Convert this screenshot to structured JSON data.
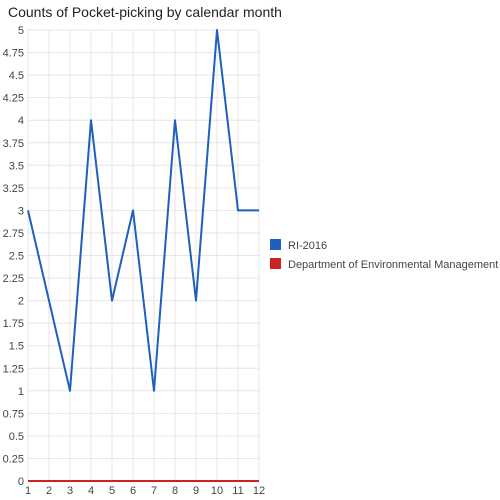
{
  "chart_data": {
    "type": "line",
    "title": "Counts of Pocket-picking by calendar month",
    "xlabel": "",
    "ylabel": "",
    "x": [
      1,
      2,
      3,
      4,
      5,
      6,
      7,
      8,
      9,
      10,
      11,
      12
    ],
    "x_tick_labels": [
      "1",
      "2",
      "3",
      "4",
      "5",
      "6",
      "7",
      "8",
      "9",
      "10",
      "11",
      "12"
    ],
    "ylim": [
      0,
      5
    ],
    "y_tick_labels": [
      "0",
      "0.25",
      "0.5",
      "0.75",
      "1",
      "1.25",
      "1.5",
      "1.75",
      "2",
      "2.25",
      "2.5",
      "2.75",
      "3",
      "3.25",
      "3.5",
      "3.75",
      "4",
      "4.25",
      "4.5",
      "4.75",
      "5"
    ],
    "grid": true,
    "legend_position": "right",
    "series": [
      {
        "name": "RI-2016",
        "color": "#1f5fbf",
        "values": [
          3,
          2,
          1,
          4,
          2,
          3,
          1,
          4,
          2,
          5,
          3,
          3
        ]
      },
      {
        "name": "Department of Environmental Management",
        "color": "#cc2222",
        "values": [
          0,
          0,
          0,
          0,
          0,
          0,
          0,
          0,
          0,
          0,
          0,
          0
        ]
      }
    ]
  }
}
